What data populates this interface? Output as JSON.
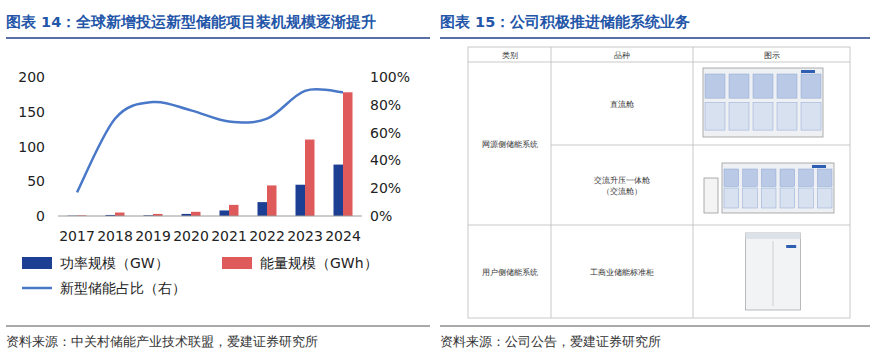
{
  "chart_data": {
    "type": "bar",
    "title": "图表 14：全球新增投运新型储能项目装机规模逐渐提升",
    "source": "资料来源：中关村储能产业技术联盟，爱建证券研究所",
    "categories": [
      "2017",
      "2018",
      "2019",
      "2020",
      "2021",
      "2022",
      "2023",
      "2024"
    ],
    "series": [
      {
        "name": "功率规模（GW）",
        "type": "bar",
        "color": "#1c3f94",
        "values": [
          0.5,
          1.5,
          1,
          3,
          8,
          20,
          45,
          74
        ]
      },
      {
        "name": "能量规模（GWh）",
        "type": "bar",
        "color": "#df5b5b",
        "values": [
          1,
          5,
          3,
          6,
          16,
          44,
          110,
          178
        ]
      },
      {
        "name": "新型储能占比（右）",
        "type": "line",
        "color": "#4a78c8",
        "line_style": "smooth",
        "axis": "y2",
        "values": [
          17,
          70,
          82,
          76,
          68,
          70,
          90,
          89
        ]
      }
    ],
    "ylim": [
      0,
      200
    ],
    "yticks": [
      0,
      50,
      100,
      150,
      200
    ],
    "y2lim": [
      0,
      100
    ],
    "y2ticks": [
      {
        "value": 0,
        "label": "0%"
      },
      {
        "value": 20,
        "label": "20%"
      },
      {
        "value": 40,
        "label": "40%"
      },
      {
        "value": 60,
        "label": "60%"
      },
      {
        "value": 80,
        "label": "80%"
      },
      {
        "value": 100,
        "label": "100%"
      }
    ],
    "grid": false,
    "legend": "bottom"
  },
  "figure15": {
    "title": "图表 15：公司积极推进储能系统业务",
    "source": "资料来源：公司公告，爱建证券研究所",
    "table": {
      "header": [
        "类别",
        "品种",
        "图示"
      ],
      "groups": [
        {
          "category": "网源侧储能系统",
          "items": [
            {
              "lines": [
                "直流舱"
              ]
            },
            {
              "lines": [
                "交流升压一体舱",
                "（交流舱）"
              ]
            }
          ]
        },
        {
          "category": "用户侧储能系统",
          "items": [
            {
              "lines": [
                "工商业储能标准柜"
              ]
            }
          ]
        }
      ]
    }
  }
}
